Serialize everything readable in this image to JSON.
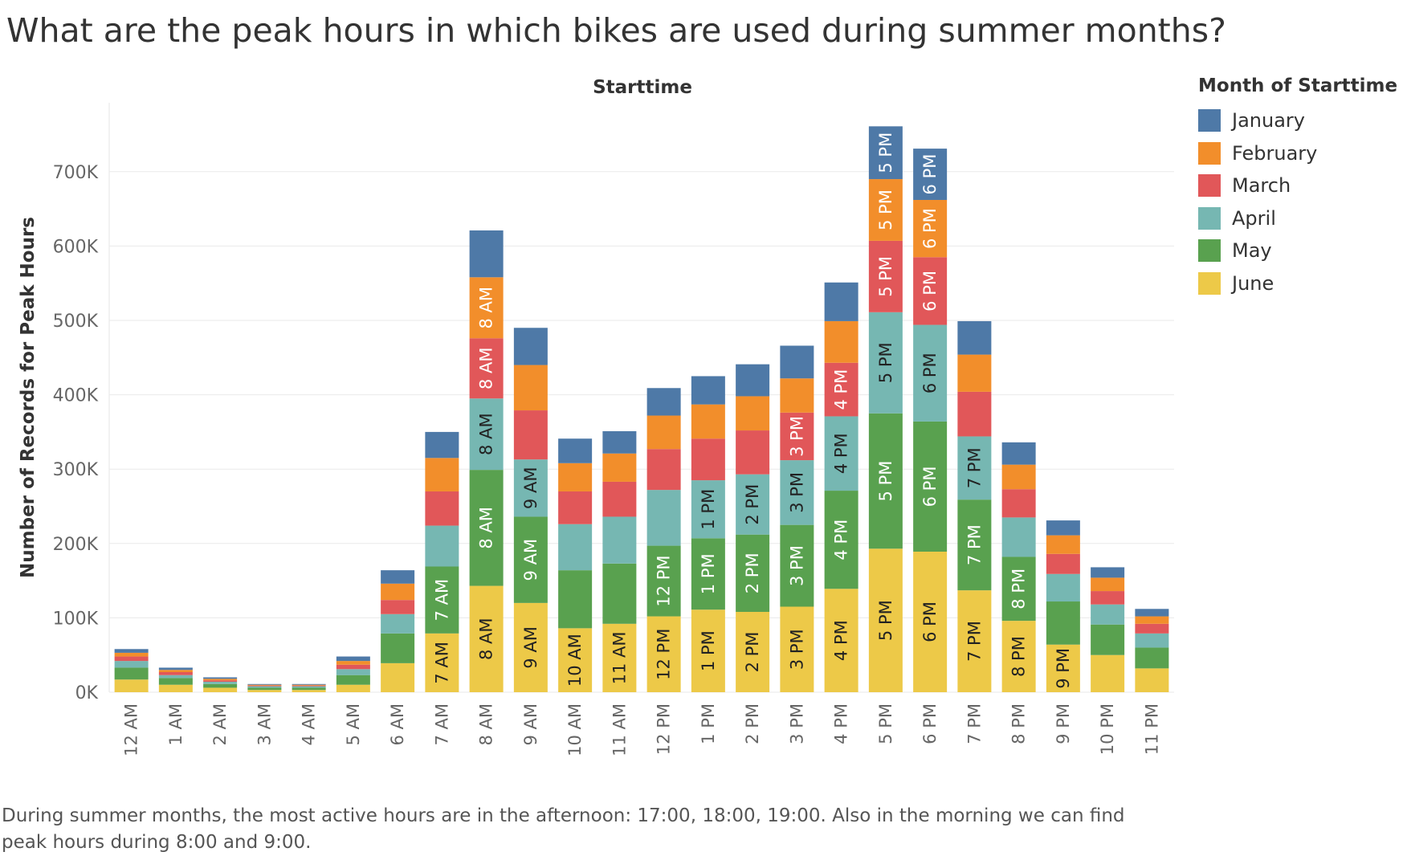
{
  "title": "What are the peak hours in which bikes are used during summer months?",
  "caption": "During summer months, the most active hours are in the afternoon: 17:00, 18:00, 19:00. Also in the morning we can find peak hours during 8:00 and 9:00.",
  "chart_data": {
    "type": "bar",
    "stacked": true,
    "header": "Starttime",
    "xlabel": "",
    "ylabel": "Number of Records for Peak Hours",
    "ylim": [
      0,
      760000
    ],
    "yticks": [
      0,
      100000,
      200000,
      300000,
      400000,
      500000,
      600000,
      700000
    ],
    "ytick_labels": [
      "0K",
      "100K",
      "200K",
      "300K",
      "400K",
      "500K",
      "600K",
      "700K"
    ],
    "grid": true,
    "legend_title": "Month of Starttime",
    "legend_position": "right",
    "categories": [
      "12 AM",
      "1 AM",
      "2 AM",
      "3 AM",
      "4 AM",
      "5 AM",
      "6 AM",
      "7 AM",
      "8 AM",
      "9 AM",
      "10 AM",
      "11 AM",
      "12 PM",
      "1 PM",
      "2 PM",
      "3 PM",
      "4 PM",
      "5 PM",
      "6 PM",
      "7 PM",
      "8 PM",
      "9 PM",
      "10 PM",
      "11 PM"
    ],
    "series": [
      {
        "name": "June",
        "color": "#EDC948",
        "values": [
          17000,
          10000,
          6000,
          3000,
          3000,
          10000,
          39000,
          79000,
          143000,
          120000,
          86000,
          92000,
          102000,
          111000,
          108000,
          115000,
          139000,
          193000,
          189000,
          137000,
          96000,
          64000,
          50000,
          32000
        ]
      },
      {
        "name": "May",
        "color": "#59A14F",
        "values": [
          16000,
          9000,
          5000,
          3000,
          3000,
          13000,
          40000,
          90000,
          156000,
          116000,
          78000,
          81000,
          95000,
          96000,
          104000,
          110000,
          132000,
          182000,
          175000,
          122000,
          86000,
          58000,
          41000,
          28000
        ]
      },
      {
        "name": "April",
        "color": "#76B7B2",
        "values": [
          9000,
          4000,
          3000,
          2000,
          2000,
          8000,
          26000,
          55000,
          96000,
          77000,
          62000,
          63000,
          75000,
          78000,
          81000,
          87000,
          100000,
          136000,
          130000,
          85000,
          53000,
          37000,
          27000,
          19000
        ]
      },
      {
        "name": "March",
        "color": "#E15759",
        "values": [
          6000,
          4000,
          2000,
          1000,
          1000,
          6000,
          19000,
          46000,
          81000,
          66000,
          44000,
          47000,
          55000,
          56000,
          59000,
          64000,
          72000,
          96000,
          91000,
          60000,
          38000,
          27000,
          18000,
          13000
        ]
      },
      {
        "name": "February",
        "color": "#F28E2B",
        "values": [
          5000,
          3000,
          2000,
          1000,
          1000,
          5000,
          22000,
          45000,
          82000,
          61000,
          38000,
          38000,
          45000,
          46000,
          46000,
          46000,
          56000,
          83000,
          77000,
          50000,
          33000,
          25000,
          18000,
          10000
        ]
      },
      {
        "name": "January",
        "color": "#4E79A7",
        "values": [
          5000,
          3000,
          2000,
          1000,
          1000,
          6000,
          18000,
          35000,
          63000,
          50000,
          33000,
          30000,
          37000,
          38000,
          43000,
          44000,
          52000,
          71000,
          69000,
          45000,
          30000,
          20000,
          14000,
          10000
        ]
      }
    ],
    "data_labels": {
      "June": [
        null,
        null,
        null,
        null,
        null,
        null,
        null,
        "7 AM",
        "8 AM",
        "9 AM",
        "10 AM",
        "11 AM",
        "12 PM",
        "1 PM",
        "2 PM",
        "3 PM",
        "4 PM",
        "5 PM",
        "6 PM",
        "7 PM",
        "8 PM",
        "9 PM",
        null,
        null
      ],
      "May": [
        null,
        null,
        null,
        null,
        null,
        null,
        null,
        "7 AM",
        "8 AM",
        "9 AM",
        null,
        null,
        "12 PM",
        "1 PM",
        "2 PM",
        "3 PM",
        "4 PM",
        "5 PM",
        "6 PM",
        "7 PM",
        "8 PM",
        null,
        null,
        null
      ],
      "April": [
        null,
        null,
        null,
        null,
        null,
        null,
        null,
        null,
        "8 AM",
        "9 AM",
        null,
        null,
        null,
        "1 PM",
        "2 PM",
        "3 PM",
        "4 PM",
        "5 PM",
        "6 PM",
        "7 PM",
        null,
        null,
        null,
        null
      ],
      "March": [
        null,
        null,
        null,
        null,
        null,
        null,
        null,
        null,
        "8 AM",
        null,
        null,
        null,
        null,
        null,
        null,
        "3 PM",
        "4 PM",
        "5 PM",
        "6 PM",
        null,
        null,
        null,
        null,
        null
      ],
      "February": [
        null,
        null,
        null,
        null,
        null,
        null,
        null,
        null,
        "8 AM",
        null,
        null,
        null,
        null,
        null,
        null,
        null,
        null,
        "5 PM",
        "6 PM",
        null,
        null,
        null,
        null,
        null
      ],
      "January": [
        null,
        null,
        null,
        null,
        null,
        null,
        null,
        null,
        null,
        null,
        null,
        null,
        null,
        null,
        null,
        null,
        null,
        "5 PM",
        "6 PM",
        null,
        null,
        null,
        null,
        null
      ]
    }
  }
}
